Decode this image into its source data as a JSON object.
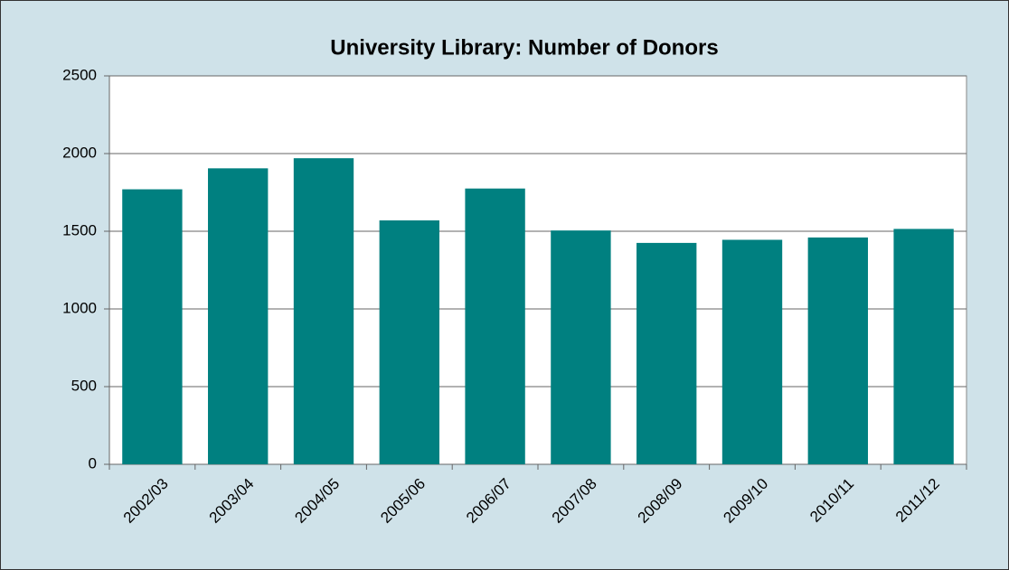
{
  "chart_data": {
    "type": "bar",
    "title": "University Library: Number of Donors",
    "categories": [
      "2002/03",
      "2003/04",
      "2004/05",
      "2005/06",
      "2006/07",
      "2007/08",
      "2008/09",
      "2009/10",
      "2010/11",
      "2011/12"
    ],
    "values": [
      1770,
      1905,
      1970,
      1570,
      1775,
      1505,
      1425,
      1445,
      1460,
      1515
    ],
    "color": "#008080",
    "ylim": [
      0,
      2500
    ],
    "yticks": [
      0,
      500,
      1000,
      1500,
      2000,
      2500
    ],
    "grid": true
  }
}
